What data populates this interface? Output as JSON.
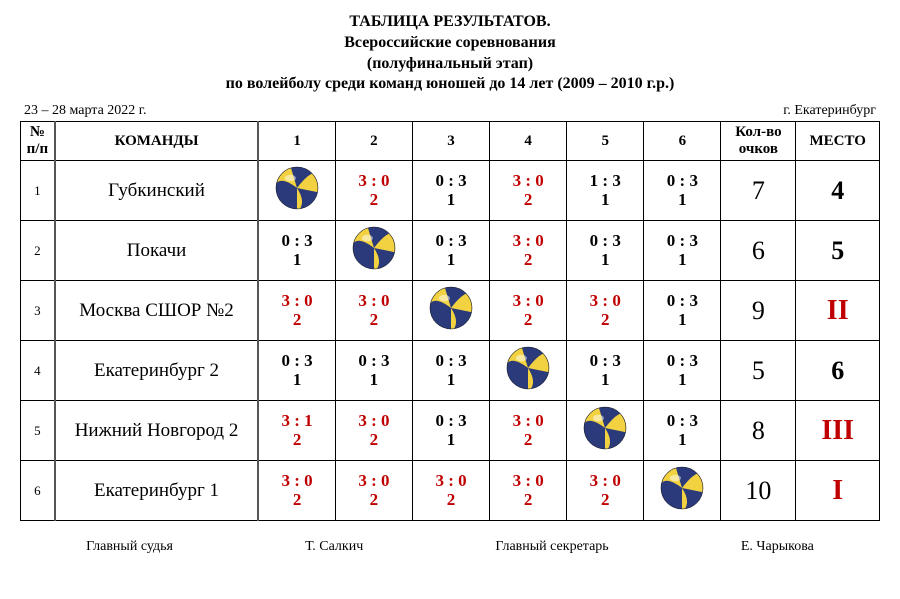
{
  "header": {
    "line1": "ТАБЛИЦА РЕЗУЛЬТАТОВ.",
    "line2": "Всероссийские соревнования",
    "line3": "(полуфинальный этап)",
    "line4": "по волейболу среди команд юношей до 14 лет (2009 – 2010 г.р.)"
  },
  "subline": {
    "dates": "23 – 28 марта 2022 г.",
    "city": "г. Екатеринбург"
  },
  "columns": {
    "idx": "№ п/п",
    "team": "КОМАНДЫ",
    "g1": "1",
    "g2": "2",
    "g3": "3",
    "g4": "4",
    "g5": "5",
    "g6": "6",
    "points": "Кол-во очков",
    "place": "МЕСТО"
  },
  "ball": {
    "size": 44,
    "body_color": "#f3d241",
    "stripe_color": "#2a3a7a"
  },
  "colors": {
    "win": "#c00000",
    "lose": "#000000"
  },
  "rows": [
    {
      "idx": "1",
      "team": "Губкинский",
      "cells": [
        {
          "diag": true
        },
        {
          "score": "3 : 0",
          "sub": "2",
          "red": true
        },
        {
          "score": "0 : 3",
          "sub": "1",
          "red": false
        },
        {
          "score": "3 : 0",
          "sub": "2",
          "red": true
        },
        {
          "score": "1 : 3",
          "sub": "1",
          "red": false
        },
        {
          "score": "0 : 3",
          "sub": "1",
          "red": false
        }
      ],
      "points": "7",
      "place": "4",
      "roman": false
    },
    {
      "idx": "2",
      "team": "Покачи",
      "cells": [
        {
          "score": "0 : 3",
          "sub": "1",
          "red": false
        },
        {
          "diag": true
        },
        {
          "score": "0 : 3",
          "sub": "1",
          "red": false
        },
        {
          "score": "3 : 0",
          "sub": "2",
          "red": true
        },
        {
          "score": "0 : 3",
          "sub": "1",
          "red": false
        },
        {
          "score": "0 : 3",
          "sub": "1",
          "red": false
        }
      ],
      "points": "6",
      "place": "5",
      "roman": false
    },
    {
      "idx": "3",
      "team": "Москва СШОР №2",
      "cells": [
        {
          "score": "3 : 0",
          "sub": "2",
          "red": true
        },
        {
          "score": "3 : 0",
          "sub": "2",
          "red": true
        },
        {
          "diag": true
        },
        {
          "score": "3 : 0",
          "sub": "2",
          "red": true
        },
        {
          "score": "3 : 0",
          "sub": "2",
          "red": true
        },
        {
          "score": "0 : 3",
          "sub": "1",
          "red": false
        }
      ],
      "points": "9",
      "place": "II",
      "roman": true
    },
    {
      "idx": "4",
      "team": "Екатеринбург 2",
      "cells": [
        {
          "score": "0 : 3",
          "sub": "1",
          "red": false
        },
        {
          "score": "0 : 3",
          "sub": "1",
          "red": false
        },
        {
          "score": "0 : 3",
          "sub": "1",
          "red": false
        },
        {
          "diag": true
        },
        {
          "score": "0 : 3",
          "sub": "1",
          "red": false
        },
        {
          "score": "0 : 3",
          "sub": "1",
          "red": false
        }
      ],
      "points": "5",
      "place": "6",
      "roman": false
    },
    {
      "idx": "5",
      "team": "Нижний Новгород 2",
      "cells": [
        {
          "score": "3 : 1",
          "sub": "2",
          "red": true
        },
        {
          "score": "3 : 0",
          "sub": "2",
          "red": true
        },
        {
          "score": "0 : 3",
          "sub": "1",
          "red": false
        },
        {
          "score": "3 : 0",
          "sub": "2",
          "red": true
        },
        {
          "diag": true
        },
        {
          "score": "0 : 3",
          "sub": "1",
          "red": false
        }
      ],
      "points": "8",
      "place": "III",
      "roman": true
    },
    {
      "idx": "6",
      "team": "Екатеринбург 1",
      "cells": [
        {
          "score": "3 : 0",
          "sub": "2",
          "red": true
        },
        {
          "score": "3 : 0",
          "sub": "2",
          "red": true
        },
        {
          "score": "3 : 0",
          "sub": "2",
          "red": true
        },
        {
          "score": "3 : 0",
          "sub": "2",
          "red": true
        },
        {
          "score": "3 : 0",
          "sub": "2",
          "red": true
        },
        {
          "diag": true
        }
      ],
      "points": "10",
      "place": "I",
      "roman": true
    }
  ],
  "footer": {
    "judge_label": "Главный судья",
    "judge_name": "Т. Салкич",
    "secretary_label": "Главный секретарь",
    "secretary_name": "Е. Чарыкова"
  }
}
